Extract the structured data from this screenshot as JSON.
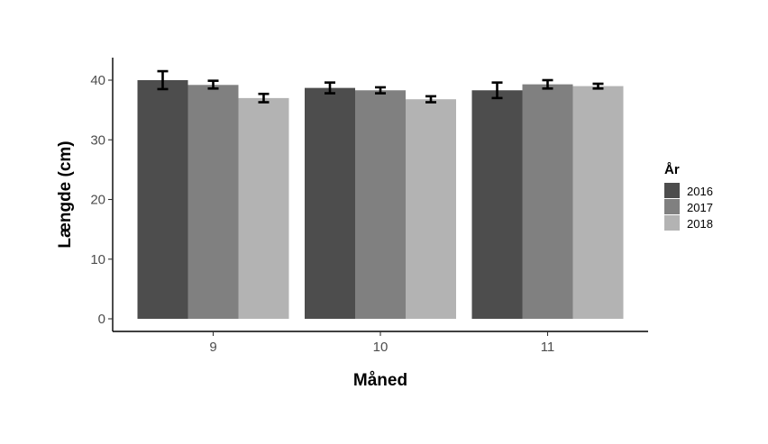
{
  "chart_data": {
    "type": "bar",
    "xlabel": "Måned",
    "ylabel": "Længde (cm)",
    "categories": [
      "9",
      "10",
      "11"
    ],
    "ylim": [
      0,
      43.5
    ],
    "yticks": [
      0,
      10,
      20,
      30,
      40
    ],
    "grid": false,
    "legend": {
      "title": "År",
      "placement": "right"
    },
    "series": [
      {
        "name": "2016",
        "color": "#4d4d4d",
        "values": [
          40.0,
          38.7,
          38.3
        ],
        "err_low": [
          38.5,
          37.8,
          37.0
        ],
        "err_high": [
          41.5,
          39.6,
          39.6
        ]
      },
      {
        "name": "2017",
        "color": "#808080",
        "values": [
          39.2,
          38.3,
          39.3
        ],
        "err_low": [
          38.6,
          37.8,
          38.6
        ],
        "err_high": [
          39.9,
          38.8,
          40.0
        ]
      },
      {
        "name": "2018",
        "color": "#b3b3b3",
        "values": [
          37.0,
          36.8,
          39.0
        ],
        "err_low": [
          36.3,
          36.3,
          38.6
        ],
        "err_high": [
          37.7,
          37.3,
          39.4
        ]
      }
    ]
  }
}
